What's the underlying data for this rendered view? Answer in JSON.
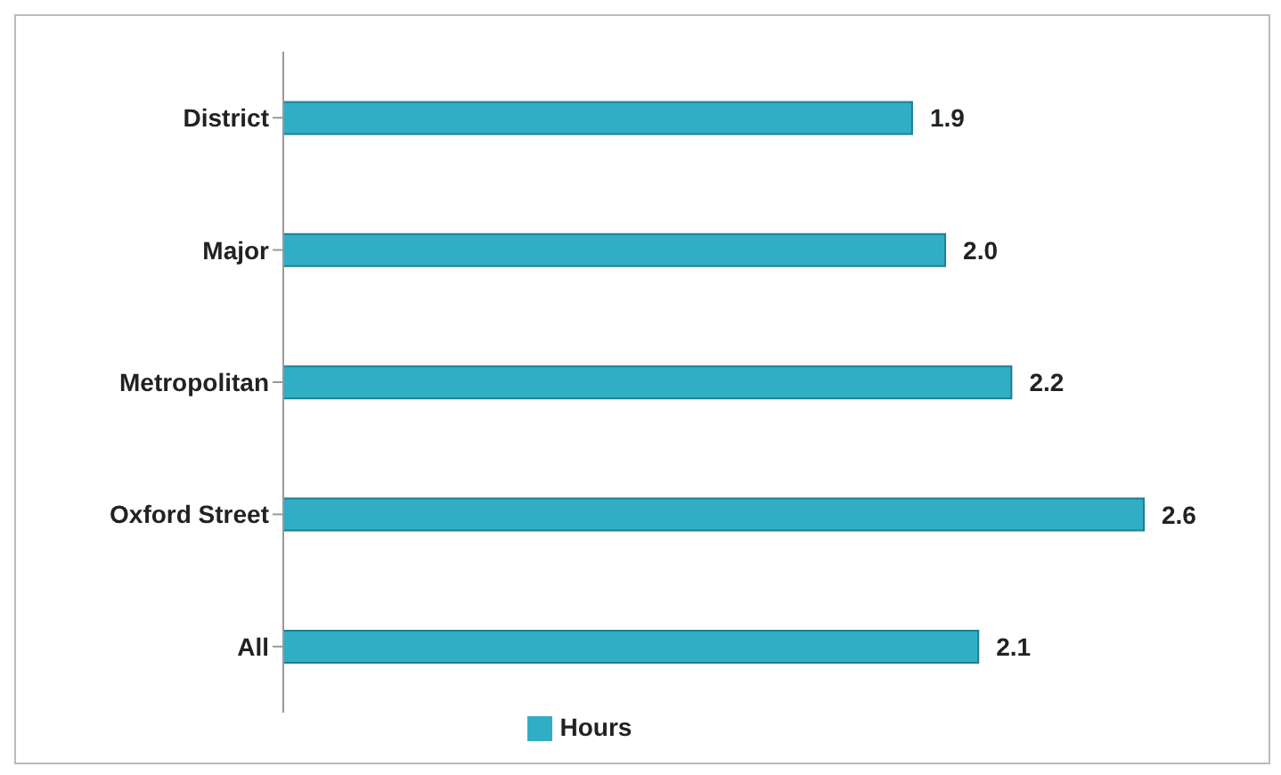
{
  "chart_data": {
    "type": "bar",
    "orientation": "horizontal",
    "categories": [
      "District",
      "Major",
      "Metropolitan",
      "Oxford Street",
      "All"
    ],
    "series": [
      {
        "name": "Hours",
        "color": "#31aec6",
        "values": [
          1.9,
          2.0,
          2.2,
          2.6,
          2.1
        ],
        "value_labels": [
          "1.9",
          "2.0",
          "2.2",
          "2.6",
          "2.1"
        ]
      }
    ],
    "legend": "bottom",
    "grid": false
  }
}
